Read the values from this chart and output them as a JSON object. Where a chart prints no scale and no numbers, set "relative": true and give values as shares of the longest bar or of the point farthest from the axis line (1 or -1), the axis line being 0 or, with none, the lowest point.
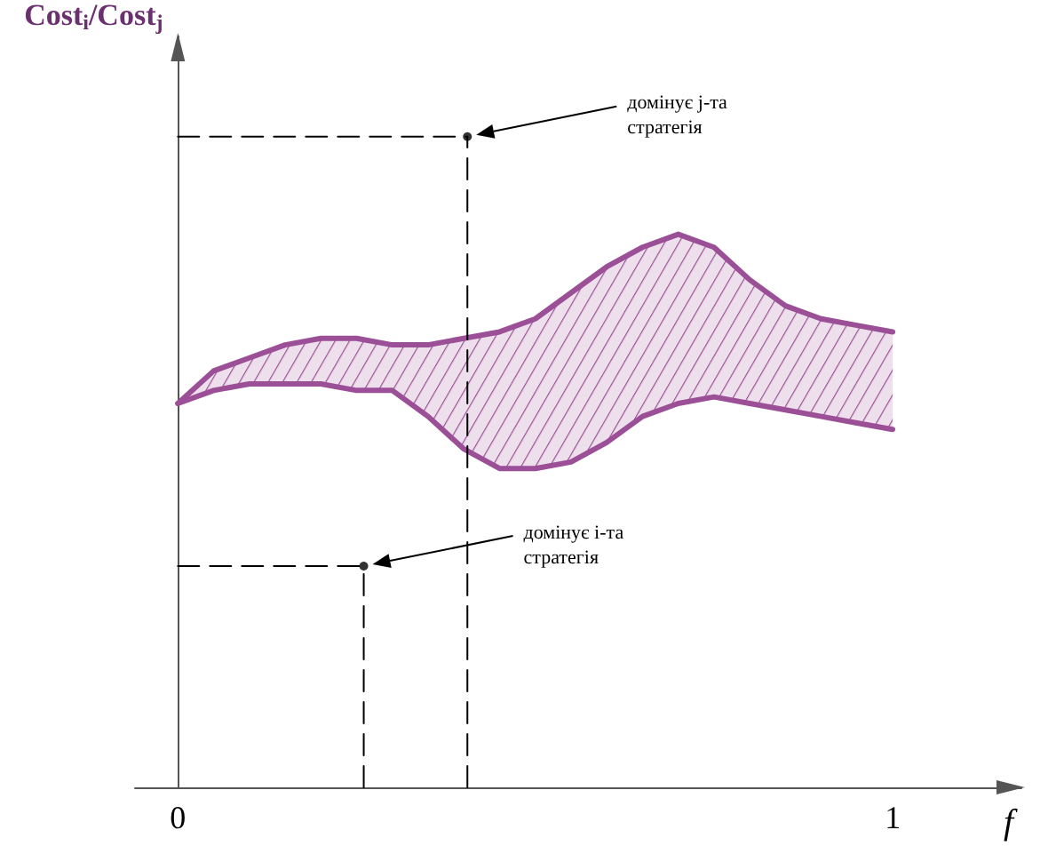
{
  "chart_data": {
    "type": "line",
    "relative": true,
    "xlabel": "f",
    "ylabel": "Cost$_{i}$/Cost$_{j}$",
    "xlim": [
      -0.06,
      1.18
    ],
    "xticks": [
      0,
      1
    ],
    "marker": "none",
    "series": [
      {
        "color": "#9b4f96",
        "x": [
          0,
          0.05,
          0.1,
          0.15,
          0.2,
          0.25,
          0.3,
          0.35,
          0.4,
          0.45,
          0.5,
          0.55,
          0.6,
          0.65,
          0.7,
          0.75,
          0.8,
          0.85,
          0.9,
          0.95,
          1
        ],
        "values": [
          0.59,
          0.64,
          0.66,
          0.68,
          0.69,
          0.69,
          0.68,
          0.68,
          0.69,
          0.7,
          0.72,
          0.76,
          0.8,
          0.83,
          0.85,
          0.83,
          0.78,
          0.74,
          0.72,
          0.71,
          0.7
        ]
      },
      {
        "color": "#9b4f96",
        "x": [
          0,
          0.05,
          0.1,
          0.15,
          0.2,
          0.25,
          0.3,
          0.35,
          0.4,
          0.45,
          0.5,
          0.55,
          0.6,
          0.65,
          0.7,
          0.75,
          0.8,
          0.85,
          0.9,
          0.95,
          1
        ],
        "values": [
          0.59,
          0.61,
          0.62,
          0.62,
          0.62,
          0.61,
          0.61,
          0.57,
          0.52,
          0.49,
          0.49,
          0.5,
          0.53,
          0.57,
          0.59,
          0.6,
          0.59,
          0.58,
          0.57,
          0.56,
          0.55
        ]
      },
      {
        "type": "scatter",
        "color": "#000000",
        "marker": "circle",
        "x": [
          0.405,
          0.26
        ],
        "values": [
          1,
          0.34
        ]
      },
      {
        "color": "#000000",
        "line_style": "dashed",
        "x": [
          0.405,
          0.405
        ],
        "values": [
          0,
          1
        ]
      },
      {
        "color": "#000000",
        "line_style": "dashed",
        "x": [
          0,
          0.405
        ],
        "values": [
          1,
          1
        ]
      },
      {
        "color": "#000000",
        "line_style": "dashed",
        "x": [
          0.26,
          0.26
        ],
        "values": [
          0,
          0.34
        ]
      },
      {
        "color": "#000000",
        "line_style": "dashed",
        "x": [
          0,
          0.26
        ],
        "values": [
          0.34,
          0.34
        ]
      }
    ],
    "annotations": [
      "домінує j-та\nстратегія",
      "домінує і-та\nстратегія"
    ]
  }
}
